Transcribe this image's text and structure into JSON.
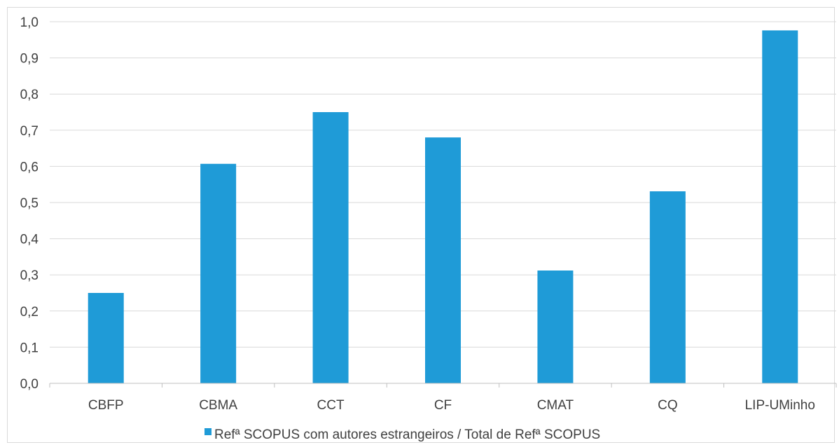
{
  "chart_data": {
    "type": "bar",
    "categories": [
      "CBFP",
      "CBMA",
      "CCT",
      "CF",
      "CMAT",
      "CQ",
      "LIP-UMinho"
    ],
    "series": [
      {
        "name": "Refª SCOPUS com autores estrangeiros / Total de Refª SCOPUS",
        "values": [
          0.25,
          0.607,
          0.75,
          0.68,
          0.312,
          0.531,
          0.976
        ],
        "color": "#1f9bd7"
      }
    ],
    "ylim": [
      0,
      1.0
    ],
    "yticks": [
      "0,0",
      "0,1",
      "0,2",
      "0,3",
      "0,4",
      "0,5",
      "0,6",
      "0,7",
      "0,8",
      "0,9",
      "1,0"
    ],
    "grid": true,
    "legend_position": "bottom",
    "title": "",
    "xlabel": "",
    "ylabel": ""
  }
}
